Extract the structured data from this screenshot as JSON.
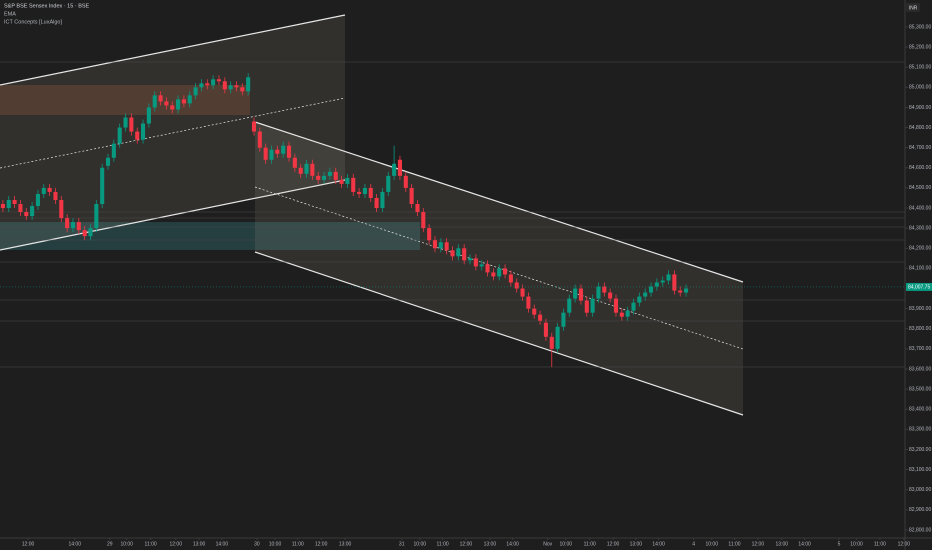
{
  "chart_data": {
    "type": "candlestick",
    "title": "S&P BSE Sensex Index · 15 · BSE",
    "indicators": [
      "EMA",
      "ICT Concepts [LuxAlgo]"
    ],
    "currency": "INR",
    "up_color": "#089981",
    "down_color": "#f23645",
    "ylim": [
      82760,
      85434
    ],
    "xlim": [
      -0.5,
      154.5
    ],
    "yticks": [
      {
        "value": 85300,
        "label": "85,300.00"
      },
      {
        "value": 85200,
        "label": "85,200.00"
      },
      {
        "value": 85100,
        "label": "85,100.00"
      },
      {
        "value": 85000,
        "label": "85,000.00"
      },
      {
        "value": 84900,
        "label": "84,900.00"
      },
      {
        "value": 84800,
        "label": "84,800.00"
      },
      {
        "value": 84700,
        "label": "84,700.00"
      },
      {
        "value": 84600,
        "label": "84,600.00"
      },
      {
        "value": 84500,
        "label": "84,500.00"
      },
      {
        "value": 84400,
        "label": "84,400.00"
      },
      {
        "value": 84300,
        "label": "84,300.00"
      },
      {
        "value": 84200,
        "label": "84,200.00"
      },
      {
        "value": 84100,
        "label": "84,100.00"
      },
      {
        "value": 83900,
        "label": "83,900.00"
      },
      {
        "value": 83800,
        "label": "83,800.00"
      },
      {
        "value": 83700,
        "label": "83,700.00"
      },
      {
        "value": 83600,
        "label": "83,600.00"
      },
      {
        "value": 83500,
        "label": "83,500.00"
      },
      {
        "value": 83400,
        "label": "83,400.00"
      },
      {
        "value": 83300,
        "label": "83,300.00"
      },
      {
        "value": 83200,
        "label": "83,200.00"
      },
      {
        "value": 83100,
        "label": "83,100.00"
      },
      {
        "value": 83000,
        "label": "83,000.00"
      },
      {
        "value": 82900,
        "label": "82,900.00"
      },
      {
        "value": 82800,
        "label": "82,800.00"
      }
    ],
    "xticks": [
      {
        "value": 4.3,
        "label": "12:00"
      },
      {
        "value": 12.3,
        "label": "14:00"
      },
      {
        "value": 18.3,
        "label": "29"
      },
      {
        "value": 21.2,
        "label": "10:00"
      },
      {
        "value": 25.3,
        "label": "11:00"
      },
      {
        "value": 29.6,
        "label": "12:00"
      },
      {
        "value": 33.6,
        "label": "13:00"
      },
      {
        "value": 37.5,
        "label": "14:00"
      },
      {
        "value": 43.5,
        "label": "30"
      },
      {
        "value": 46.6,
        "label": "10:00"
      },
      {
        "value": 50.5,
        "label": "11:00"
      },
      {
        "value": 54.5,
        "label": "12:00"
      },
      {
        "value": 58.6,
        "label": "13:00"
      },
      {
        "value": 68.3,
        "label": "31"
      },
      {
        "value": 71.4,
        "label": "10:00"
      },
      {
        "value": 75.3,
        "label": "11:00"
      },
      {
        "value": 79.3,
        "label": "12:00"
      },
      {
        "value": 83.4,
        "label": "13:00"
      },
      {
        "value": 87.3,
        "label": "14:00"
      },
      {
        "value": 93.3,
        "label": "Nov"
      },
      {
        "value": 96.4,
        "label": "10:00"
      },
      {
        "value": 100.5,
        "label": "11:00"
      },
      {
        "value": 104.5,
        "label": "12:00"
      },
      {
        "value": 108.4,
        "label": "13:00"
      },
      {
        "value": 112.3,
        "label": "14:00"
      },
      {
        "value": 118.3,
        "label": "4"
      },
      {
        "value": 121.4,
        "label": "10:00"
      },
      {
        "value": 125.3,
        "label": "11:00"
      },
      {
        "value": 129.3,
        "label": "12:00"
      },
      {
        "value": 133.4,
        "label": "13:00"
      },
      {
        "value": 137.3,
        "label": "14:00"
      },
      {
        "value": 143.2,
        "label": "5"
      },
      {
        "value": 146.2,
        "label": "10:00"
      },
      {
        "value": 150.2,
        "label": "11:00"
      },
      {
        "value": 154.3,
        "label": "12:00"
      }
    ],
    "last_price": {
      "value": 84007.75,
      "label": "84,007.75"
    },
    "open": [
      84420,
      84400,
      84440,
      84420,
      84380,
      84360,
      84410,
      84470,
      84500,
      84480,
      84440,
      84350,
      84300,
      84330,
      84290,
      84260,
      84300,
      84420,
      84610,
      84650,
      84720,
      84800,
      84850,
      84780,
      84740,
      84820,
      84900,
      84960,
      84930,
      84910,
      84890,
      84940,
      84920,
      84960,
      85000,
      85020,
      85010,
      85040,
      85030,
      84990,
      85010,
      85000,
      84980,
      84830,
      84780,
      84700,
      84640,
      84690,
      84670,
      84710,
      84650,
      84600,
      84570,
      84620,
      84560,
      84540,
      84560,
      84580,
      84540,
      84520,
      84550,
      84480,
      84470,
      84500,
      84450,
      84400,
      84480,
      84560,
      84640,
      84560,
      84500,
      84420,
      84380,
      84300,
      84240,
      84200,
      84230,
      84190,
      84160,
      84200,
      84140,
      84150,
      84110,
      84120,
      84080,
      84060,
      84100,
      84070,
      84030,
      84000,
      83960,
      83900,
      83870,
      83830,
      83760,
      83700,
      83810,
      83880,
      83950,
      84000,
      83940,
      83880,
      83950,
      84010,
      83980,
      83950,
      83880,
      83860,
      83890,
      83930,
      83960,
      83980,
      84010,
      84030,
      84040,
      84070,
      83990,
      83980
    ],
    "high": [
      84440,
      84460,
      84460,
      84440,
      84400,
      84430,
      84490,
      84520,
      84520,
      84500,
      84460,
      84370,
      84350,
      84350,
      84310,
      84320,
      84440,
      84620,
      84670,
      84740,
      84820,
      84870,
      84870,
      84800,
      84840,
      84920,
      84980,
      84980,
      84950,
      84930,
      84960,
      84960,
      84980,
      85020,
      85040,
      85040,
      85060,
      85060,
      85050,
      85030,
      85030,
      85020,
      85070,
      84850,
      84800,
      84720,
      84710,
      84710,
      84730,
      84730,
      84670,
      84620,
      84640,
      84640,
      84580,
      84580,
      84600,
      84600,
      84560,
      84570,
      84570,
      84500,
      84520,
      84520,
      84470,
      84500,
      84580,
      84710,
      84660,
      84580,
      84520,
      84440,
      84400,
      84320,
      84260,
      84250,
      84250,
      84210,
      84220,
      84220,
      84170,
      84170,
      84140,
      84140,
      84100,
      84120,
      84120,
      84090,
      84050,
      84020,
      83980,
      83920,
      83890,
      83850,
      83780,
      83830,
      83900,
      83970,
      84020,
      84020,
      83960,
      83970,
      84030,
      84030,
      84000,
      83970,
      83900,
      83910,
      83950,
      83980,
      84000,
      84030,
      84050,
      84060,
      84090,
      84090,
      84010,
      84020
    ],
    "low": [
      84380,
      84380,
      84400,
      84360,
      84340,
      84340,
      84390,
      84450,
      84460,
      84420,
      84330,
      84280,
      84280,
      84270,
      84240,
      84240,
      84280,
      84400,
      84590,
      84630,
      84700,
      84780,
      84760,
      84720,
      84720,
      84800,
      84880,
      84910,
      84890,
      84870,
      84870,
      84900,
      84900,
      84940,
      84980,
      84990,
      84990,
      85010,
      84970,
      84970,
      84980,
      84960,
      84960,
      84760,
      84680,
      84620,
      84620,
      84650,
      84650,
      84630,
      84580,
      84550,
      84550,
      84540,
      84520,
      84520,
      84540,
      84520,
      84500,
      84500,
      84460,
      84450,
      84450,
      84430,
      84380,
      84380,
      84460,
      84540,
      84540,
      84480,
      84400,
      84360,
      84280,
      84220,
      84180,
      84180,
      84170,
      84140,
      84140,
      84120,
      84120,
      84090,
      84090,
      84060,
      84040,
      84040,
      84050,
      84010,
      83980,
      83940,
      83880,
      83850,
      83820,
      83740,
      83610,
      83680,
      83790,
      83860,
      83930,
      83920,
      83860,
      83860,
      83930,
      83960,
      83930,
      83860,
      83840,
      83840,
      83870,
      83910,
      83940,
      83960,
      83990,
      84010,
      84020,
      83970,
      83960,
      83960
    ],
    "close": [
      84400,
      84440,
      84420,
      84380,
      84360,
      84410,
      84470,
      84500,
      84480,
      84440,
      84350,
      84300,
      84330,
      84290,
      84260,
      84300,
      84420,
      84600,
      84650,
      84720,
      84800,
      84850,
      84780,
      84740,
      84820,
      84900,
      84960,
      84930,
      84910,
      84890,
      84940,
      84920,
      84960,
      85000,
      85020,
      85010,
      85040,
      85030,
      84990,
      85010,
      85000,
      84980,
      85050,
      84780,
      84700,
      84640,
      84690,
      84670,
      84710,
      84650,
      84600,
      84570,
      84620,
      84560,
      84540,
      84560,
      84580,
      84540,
      84520,
      84550,
      84480,
      84470,
      84500,
      84450,
      84400,
      84480,
      84560,
      84620,
      84560,
      84500,
      84420,
      84380,
      84300,
      84240,
      84200,
      84230,
      84190,
      84160,
      84200,
      84140,
      84150,
      84110,
      84120,
      84080,
      84060,
      84100,
      84070,
      84030,
      84000,
      83960,
      83900,
      83870,
      83840,
      83760,
      83700,
      83810,
      83880,
      83950,
      84000,
      83940,
      83880,
      83950,
      84010,
      83980,
      83950,
      83880,
      83860,
      83890,
      83930,
      83960,
      83980,
      84010,
      84030,
      84040,
      84070,
      83990,
      83980,
      84000
    ]
  }
}
